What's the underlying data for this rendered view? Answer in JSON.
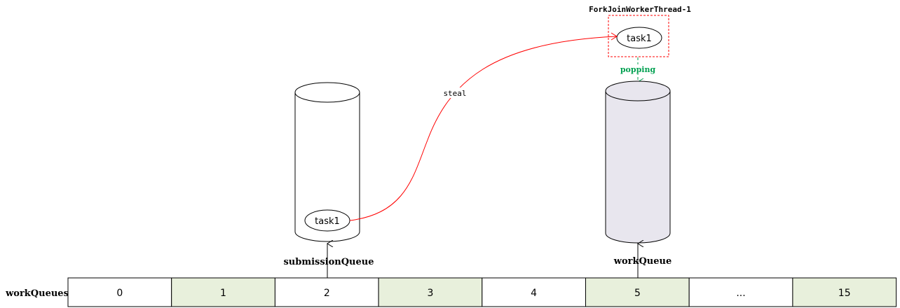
{
  "thread": {
    "label": "ForkJoinWorkerThread-1",
    "task_label": "task1"
  },
  "edges": {
    "steal": "steal",
    "popping": "popping"
  },
  "submission_queue": {
    "label": "submissionQueue",
    "task_label": "task1"
  },
  "work_queue": {
    "label": "workQueue"
  },
  "work_queues": {
    "label": "workQueues",
    "cells": [
      "0",
      "1",
      "2",
      "3",
      "4",
      "5",
      "...",
      "15"
    ]
  },
  "colors": {
    "steal_line": "#ff0000",
    "thread_box": "#ff0000",
    "popping": "#00a050",
    "work_queue_fill": "#e8e6ee",
    "odd_cell_fill": "#e8f0dc",
    "stroke": "#000000"
  }
}
